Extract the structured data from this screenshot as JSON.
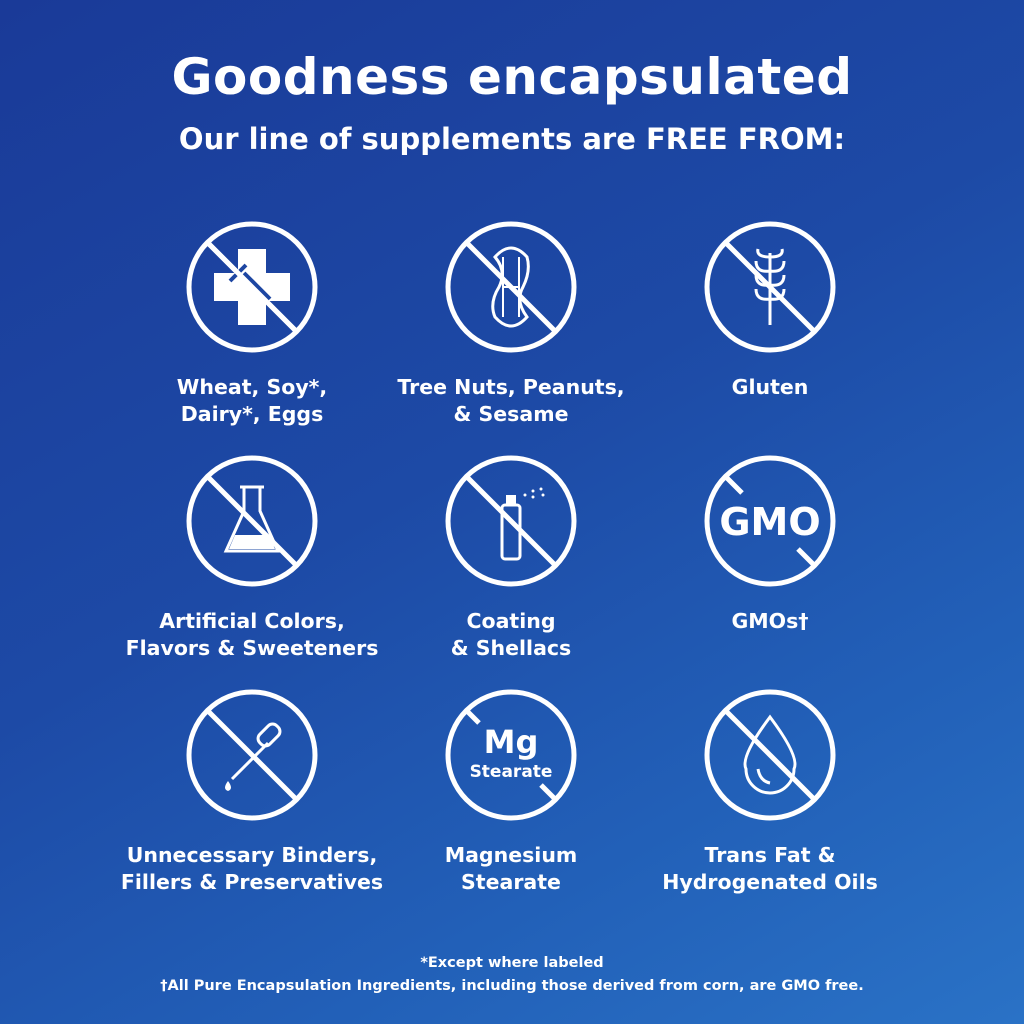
{
  "header": {
    "title": "Goodness encapsulated",
    "subtitle": "Our line of supplements are FREE FROM:"
  },
  "items": [
    {
      "icon": "allergen-cross-fork-icon",
      "label": "Wheat, Soy*,\nDairy*, Eggs"
    },
    {
      "icon": "peanut-icon",
      "label": "Tree Nuts, Peanuts,\n& Sesame"
    },
    {
      "icon": "wheat-icon",
      "label": "Gluten"
    },
    {
      "icon": "flask-icon",
      "label": "Artificial Colors,\nFlavors & Sweeteners"
    },
    {
      "icon": "spray-bottle-icon",
      "label": "Coating\n& Shellacs"
    },
    {
      "icon": "gmo-icon",
      "icon_text": "GMO",
      "label": "GMOs†"
    },
    {
      "icon": "dropper-icon",
      "label": "Unnecessary Binders,\nFillers & Preservatives"
    },
    {
      "icon": "mg-stearate-icon",
      "icon_text": "Mg",
      "icon_subtext": "Stearate",
      "label": "Magnesium\nStearate"
    },
    {
      "icon": "oil-drop-icon",
      "label": "Trans Fat &\nHydrogenated Oils"
    }
  ],
  "footnotes": {
    "asterisk": "*Except where labeled",
    "dagger": "†All Pure Encapsulation Ingredients, including those derived from corn, are GMO free."
  },
  "colors": {
    "background_start": "#1a3a98",
    "background_end": "#2a72c6",
    "foreground": "#ffffff"
  }
}
